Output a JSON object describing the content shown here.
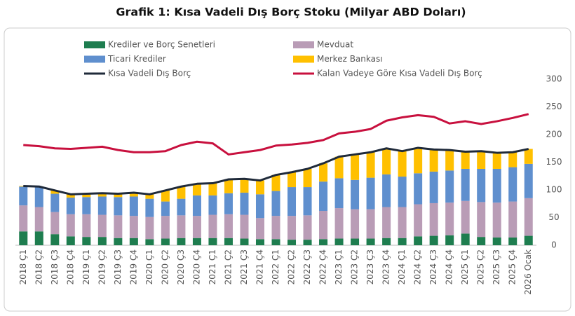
{
  "chart_data": {
    "type": "bar",
    "title": "Grafik 1: Kısa Vadeli Dış Borç Stoku (Milyar ABD Doları)",
    "categories": [
      "2018 Ç1",
      "2018 Ç2",
      "2018 Ç3",
      "2018 Ç4",
      "2019 Ç1",
      "2019 Ç2",
      "2019 Ç3",
      "2019 Ç4",
      "2020 Ç1",
      "2020 Ç2",
      "2020 Ç3",
      "2020 Ç4",
      "2021 Ç1",
      "2021 Ç2",
      "2021 Ç3",
      "2021 Ç4",
      "2022 Ç1",
      "2022 Ç2",
      "2022 Ç3",
      "2022 Ç4",
      "2023 Ç1",
      "2023 Ç2",
      "2023 Ç3",
      "2023 Ç4",
      "2024 Ç1",
      "2024 Ç2",
      "2024 Ç3",
      "2024 Ç4",
      "2025 Ç1",
      "2025 Ç2",
      "2025 Ç3",
      "2025 Ç4",
      "2026 Ocak"
    ],
    "series": [
      {
        "name": "Krediler ve Borç Senetleri",
        "type": "bar",
        "color": "#1e7d4f",
        "values": [
          25,
          25,
          20,
          16,
          15,
          15,
          13,
          13,
          11,
          12,
          13,
          13,
          13,
          13,
          12,
          11,
          11,
          10,
          10,
          11,
          12,
          12,
          12,
          13,
          13,
          16,
          17,
          18,
          21,
          15,
          14,
          14,
          17
        ]
      },
      {
        "name": "Mevduat",
        "type": "bar",
        "color": "#b99cb6",
        "values": [
          47,
          44,
          40,
          40,
          41,
          40,
          41,
          40,
          40,
          41,
          41,
          40,
          42,
          43,
          43,
          38,
          42,
          43,
          44,
          51,
          55,
          53,
          53,
          56,
          56,
          58,
          59,
          59,
          59,
          63,
          63,
          65,
          68
        ]
      },
      {
        "name": "Ticari Krediler",
        "type": "bar",
        "color": "#5f8fce",
        "values": [
          34,
          36,
          33,
          30,
          31,
          33,
          33,
          35,
          33,
          26,
          30,
          37,
          35,
          38,
          40,
          43,
          45,
          52,
          51,
          53,
          54,
          53,
          57,
          59,
          55,
          56,
          57,
          58,
          58,
          60,
          61,
          62,
          62
        ]
      },
      {
        "name": "Merkez Bankası",
        "type": "bar",
        "color": "#ffc000",
        "values": [
          1,
          1,
          6,
          6,
          6,
          6,
          6,
          7,
          8,
          20,
          22,
          21,
          22,
          25,
          25,
          25,
          29,
          27,
          33,
          33,
          39,
          46,
          46,
          47,
          46,
          46,
          40,
          37,
          31,
          32,
          29,
          27,
          27
        ]
      },
      {
        "name": "Kısa Vadeli Dış Borç",
        "type": "line",
        "color": "#1f2a3a",
        "values": [
          107,
          106,
          99,
          92,
          93,
          94,
          93,
          95,
          92,
          99,
          106,
          111,
          112,
          119,
          120,
          117,
          127,
          132,
          138,
          148,
          160,
          164,
          168,
          175,
          170,
          176,
          173,
          172,
          169,
          170,
          167,
          168,
          174
        ]
      },
      {
        "name": "Kalan Vadeye Göre Kısa Vadeli Dış Borç",
        "type": "line",
        "color": "#c8103e",
        "values": [
          181,
          179,
          175,
          174,
          176,
          178,
          172,
          168,
          168,
          170,
          181,
          187,
          184,
          164,
          168,
          172,
          180,
          182,
          185,
          190,
          202,
          205,
          210,
          225,
          231,
          235,
          232,
          220,
          224,
          219,
          224,
          230,
          237
        ]
      }
    ],
    "ylim": [
      0,
      300
    ],
    "yticks": [
      0,
      50,
      100,
      150,
      200,
      250,
      300
    ]
  }
}
